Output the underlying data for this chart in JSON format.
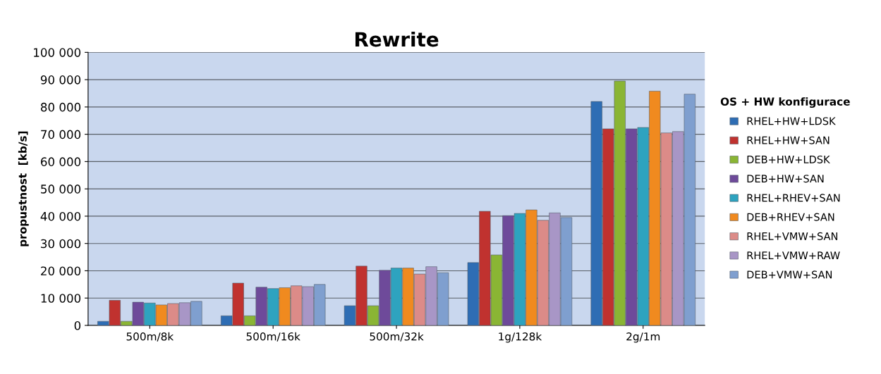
{
  "chart_data": {
    "type": "bar",
    "title": "Rewrite",
    "ylabel": "propustnost  [kb/s]",
    "legend_title": "OS + HW konfigurace",
    "legend": "right",
    "grid": "y",
    "categories": [
      "500m/8k",
      "500m/16k",
      "500m/32k",
      "1g/128k",
      "2g/1m"
    ],
    "ylim": [
      0,
      100000
    ],
    "yticks": [
      {
        "value": 0,
        "label": "0"
      },
      {
        "value": 10000,
        "label": "10 000"
      },
      {
        "value": 20000,
        "label": "20 000"
      },
      {
        "value": 30000,
        "label": "30 000"
      },
      {
        "value": 40000,
        "label": "40 000"
      },
      {
        "value": 50000,
        "label": "50 000"
      },
      {
        "value": 60000,
        "label": "60 000"
      },
      {
        "value": 70000,
        "label": "70 000"
      },
      {
        "value": 80000,
        "label": "80 000"
      },
      {
        "value": 90000,
        "label": "90 000"
      },
      {
        "value": 100000,
        "label": "100 000"
      }
    ],
    "series": [
      {
        "name": "RHEL+HW+LDSK",
        "color": "#2e6db4",
        "values": [
          1500,
          3500,
          7200,
          23000,
          82000
        ]
      },
      {
        "name": "RHEL+HW+SAN",
        "color": "#c0322f",
        "values": [
          9200,
          15500,
          21700,
          41800,
          72000
        ]
      },
      {
        "name": "DEB+HW+LDSK",
        "color": "#8ab534",
        "values": [
          1500,
          3500,
          7200,
          25800,
          89500
        ]
      },
      {
        "name": "DEB+HW+SAN",
        "color": "#6e4a9a",
        "values": [
          8500,
          14000,
          20200,
          40200,
          72000
        ]
      },
      {
        "name": "RHEL+RHEV+SAN",
        "color": "#2ea3bf",
        "values": [
          8200,
          13500,
          21000,
          41000,
          72500
        ]
      },
      {
        "name": "DEB+RHEV+SAN",
        "color": "#f08a1f",
        "values": [
          7500,
          13800,
          21000,
          42300,
          85800
        ]
      },
      {
        "name": "RHEL+VMW+SAN",
        "color": "#dc8b88",
        "values": [
          8000,
          14500,
          18800,
          38500,
          70500
        ]
      },
      {
        "name": "RHEL+VMW+RAW",
        "color": "#a896c6",
        "values": [
          8300,
          14200,
          21500,
          41200,
          71000
        ]
      },
      {
        "name": "DEB+VMW+SAN",
        "color": "#7f9fcf",
        "values": [
          8800,
          15000,
          19300,
          39500,
          84700
        ]
      }
    ]
  }
}
